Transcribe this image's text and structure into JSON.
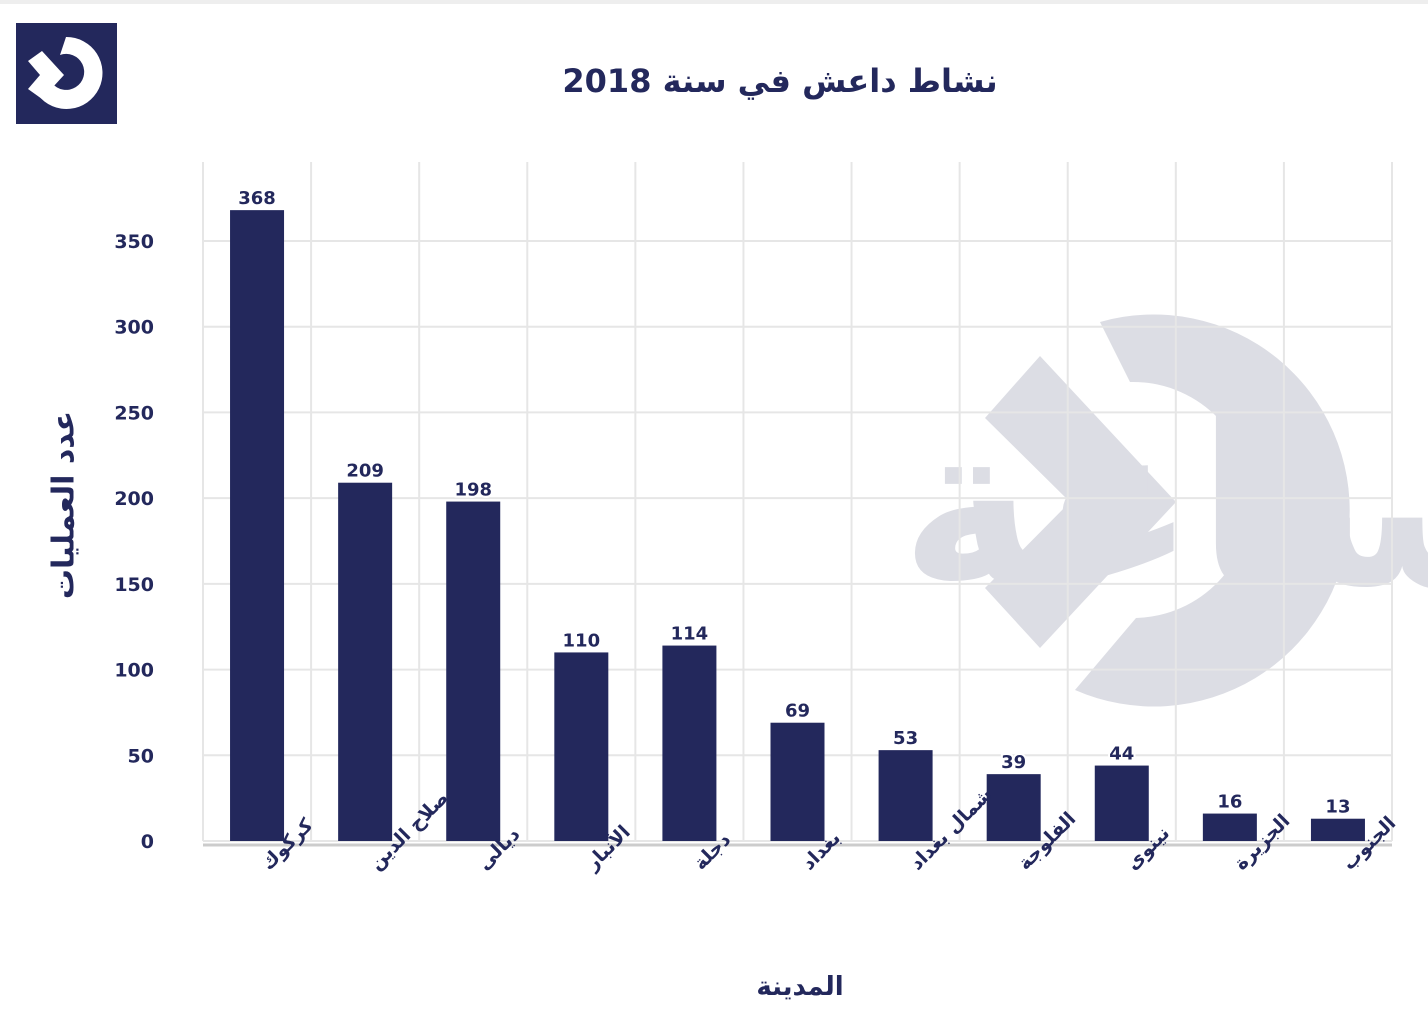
{
  "header": {
    "title": "نشاط داعش في سنة 2018",
    "logo_icon": "play-arrow-logo-icon"
  },
  "watermark": {
    "text": "الساعة",
    "icon": "play-arrow-logo-icon"
  },
  "colors": {
    "bar": "#23285c",
    "text": "#23285c",
    "grid": "#e6e6e6",
    "watermark": "#dcdde4"
  },
  "chart_data": {
    "type": "bar",
    "title": "نشاط داعش في سنة 2018",
    "xlabel": "المدينة",
    "ylabel": "عدد العمليات",
    "categories": [
      "كركوك",
      "صلاح الدين",
      "ديالى",
      "الأنبار",
      "دجلة",
      "بغداد",
      "شمال بغداد",
      "الفلوجة",
      "نينوى",
      "الجزيرة",
      "الجنوب"
    ],
    "values": [
      368,
      209,
      198,
      110,
      114,
      69,
      53,
      39,
      44,
      16,
      13
    ],
    "ylim": [
      0,
      350
    ],
    "yticks": [
      0,
      50,
      100,
      150,
      200,
      250,
      300,
      350
    ],
    "grid": true,
    "data_labels": true
  }
}
